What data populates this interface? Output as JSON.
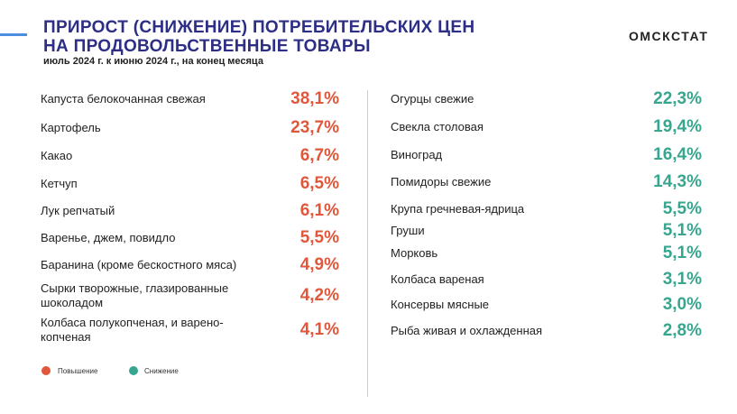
{
  "header": {
    "title": [
      "ПРИРОСТ (СНИЖЕНИЕ) ПОТРЕБИТЕЛЬСКИХ ЦЕН",
      "НА ПРОДОВОЛЬСТВЕННЫЕ ТОВАРЫ"
    ],
    "subtitle": "июль 2024 г. к июню 2024 г., на конец месяца",
    "brand": "ОМСКСТАТ"
  },
  "increase": [
    {
      "name": "Капуста белокочанная свежая",
      "value": "38,1%"
    },
    {
      "name": "Картофель",
      "value": "23,7%"
    },
    {
      "name": "Какао",
      "value": "6,7%"
    },
    {
      "name": "Кетчуп",
      "value": "6,5%"
    },
    {
      "name": "Лук репчатый",
      "value": "6,1%"
    },
    {
      "name": "Варенье, джем, повидло",
      "value": "5,5%"
    },
    {
      "name": "Баранина (кроме бескостного мяса)",
      "value": "4,9%"
    },
    {
      "name": "Сырки творожные, глазированные шоколадом",
      "value": "4,2%"
    },
    {
      "name": "Колбаса полукопченая, и варено-копченая",
      "value": "4,1%"
    }
  ],
  "decrease": [
    {
      "name": "Огурцы свежие",
      "value": "22,3%"
    },
    {
      "name": "Свекла столовая",
      "value": "19,4%"
    },
    {
      "name": "Виноград",
      "value": "16,4%"
    },
    {
      "name": "Помидоры свежие",
      "value": "14,3%"
    },
    {
      "name": "Крупа гречневая-ядрица",
      "value": "5,5%"
    },
    {
      "name": "Груши",
      "value": "5,1%"
    },
    {
      "name": "Морковь",
      "value": "5,1%"
    },
    {
      "name": "Колбаса вареная",
      "value": "3,1%"
    },
    {
      "name": "Консервы мясные",
      "value": "3,0%"
    },
    {
      "name": "Рыба живая и охлажденная",
      "value": "2,8%"
    }
  ],
  "legend": {
    "increase": "Повышение",
    "decrease": "Снижение"
  }
}
